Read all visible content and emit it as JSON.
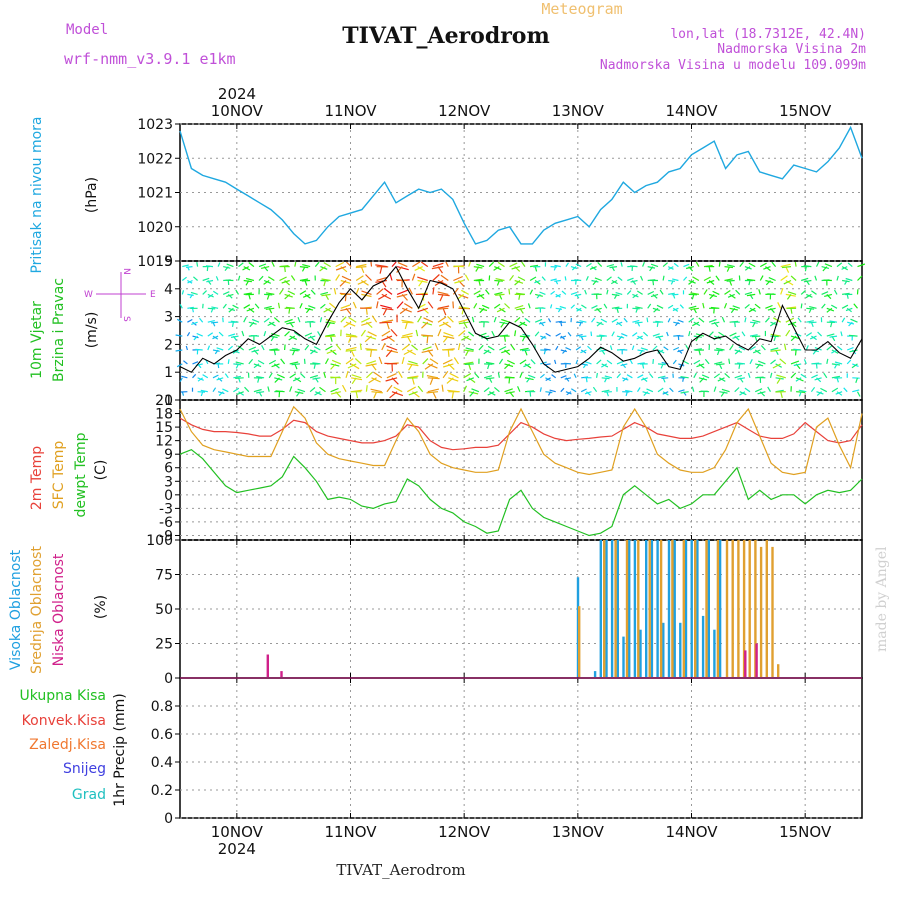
{
  "header": {
    "meteogram_label": "Meteogram",
    "station_title": "TIVAT_Aerodrom",
    "model_label": "Model",
    "model_name": "wrf-nmm_v3.9.1  e1km",
    "lonlat": "lon,lat (18.7312E, 42.4N)",
    "elevation": "Nadmorska Visina 2m",
    "model_elevation": "Nadmorska Visina u modelu 109.099m",
    "year_top": "2024",
    "credit": "made by Angel",
    "footer_title": "TIVAT_Aerodrom"
  },
  "colors": {
    "pressure": "#1fa8e0",
    "temp2m": "#e8413a",
    "sfctemp": "#e0a020",
    "dewpt": "#22c022",
    "cloud_high": "#20a0e0",
    "cloud_mid": "#e0a030",
    "cloud_low": "#d0208a",
    "wind_scale_magenta": "#c040d0"
  },
  "chart_data": [
    {
      "type": "line",
      "panel": "pressure",
      "side_label": "Pritisak na nivou mora",
      "unit_label": "(hPa)",
      "ylim": [
        1019,
        1023
      ],
      "yticks": [
        "1023",
        "1022",
        "1021",
        "1020",
        "1019"
      ],
      "x_categories": [
        "10NOV",
        "11NOV",
        "12NOV",
        "13NOV",
        "14NOV",
        "15NOV"
      ],
      "x_days": [
        0,
        1,
        2,
        3,
        4,
        5
      ],
      "year_bottom": "2024",
      "x_range_days": [
        -0.5,
        5.5
      ],
      "series": [
        {
          "x": [
            -0.5,
            -0.4,
            -0.3,
            -0.2,
            -0.1,
            0.0,
            0.1,
            0.2,
            0.3,
            0.4,
            0.5,
            0.6,
            0.7,
            0.8,
            0.9,
            1.0,
            1.1,
            1.2,
            1.3,
            1.4,
            1.5,
            1.6,
            1.7,
            1.8,
            1.9,
            2.0,
            2.1,
            2.2,
            2.3,
            2.4,
            2.5,
            2.6,
            2.7,
            2.8,
            2.9,
            3.0,
            3.1,
            3.2,
            3.3,
            3.4,
            3.5,
            3.6,
            3.7,
            3.8,
            3.9,
            4.0,
            4.1,
            4.2,
            4.3,
            4.4,
            4.5,
            4.6,
            4.7,
            4.8,
            4.9,
            5.0,
            5.1,
            5.2,
            5.3,
            5.4,
            5.5
          ],
          "values": [
            1022.8,
            1021.7,
            1021.5,
            1021.4,
            1021.3,
            1021.1,
            1020.9,
            1020.7,
            1020.5,
            1020.2,
            1019.8,
            1019.5,
            1019.6,
            1020.0,
            1020.3,
            1020.4,
            1020.5,
            1020.9,
            1021.3,
            1020.7,
            1020.9,
            1021.1,
            1021.0,
            1021.1,
            1020.8,
            1020.1,
            1019.5,
            1019.6,
            1019.9,
            1020.0,
            1019.5,
            1019.5,
            1019.9,
            1020.1,
            1020.2,
            1020.3,
            1020.0,
            1020.5,
            1020.8,
            1021.3,
            1021.0,
            1021.2,
            1021.3,
            1021.6,
            1021.7,
            1022.1,
            1022.3,
            1022.5,
            1021.7,
            1022.1,
            1022.2,
            1021.6,
            1021.5,
            1021.4,
            1021.8,
            1021.7,
            1021.6,
            1021.9,
            1022.3,
            1022.9,
            1022.0
          ]
        }
      ]
    },
    {
      "type": "line",
      "panel": "wind",
      "side_label_1": "10m Vjetar",
      "side_label_2": "Brzina i Pravac",
      "unit_label": "(m/s)",
      "compass_letters": [
        "N",
        "W",
        "E",
        "S"
      ],
      "ylim": [
        0,
        5
      ],
      "yticks": [
        "5",
        "4",
        "3",
        "2",
        "1",
        "0"
      ],
      "series": [
        {
          "name": "speed",
          "x": [
            -0.5,
            -0.4,
            -0.3,
            -0.2,
            -0.1,
            0.0,
            0.1,
            0.2,
            0.3,
            0.4,
            0.5,
            0.6,
            0.7,
            0.8,
            0.9,
            1.0,
            1.1,
            1.2,
            1.3,
            1.4,
            1.5,
            1.6,
            1.7,
            1.8,
            1.9,
            2.0,
            2.1,
            2.2,
            2.3,
            2.4,
            2.5,
            2.6,
            2.7,
            2.8,
            2.9,
            3.0,
            3.1,
            3.2,
            3.3,
            3.4,
            3.5,
            3.6,
            3.7,
            3.8,
            3.9,
            4.0,
            4.1,
            4.2,
            4.3,
            4.4,
            4.5,
            4.6,
            4.7,
            4.8,
            4.9,
            5.0,
            5.1,
            5.2,
            5.3,
            5.4,
            5.5
          ],
          "values": [
            1.2,
            1.0,
            1.5,
            1.3,
            1.6,
            1.8,
            2.2,
            2.0,
            2.3,
            2.6,
            2.5,
            2.2,
            2.0,
            2.8,
            3.5,
            4.0,
            3.6,
            4.1,
            4.3,
            4.8,
            4.0,
            3.3,
            4.3,
            4.2,
            4.0,
            3.2,
            2.4,
            2.2,
            2.3,
            2.8,
            2.6,
            2.0,
            1.3,
            1.0,
            1.1,
            1.2,
            1.5,
            1.9,
            1.7,
            1.4,
            1.5,
            1.7,
            1.8,
            1.2,
            1.1,
            2.1,
            2.4,
            2.2,
            2.3,
            2.0,
            1.8,
            2.2,
            2.1,
            3.4,
            2.6,
            1.8,
            1.8,
            2.1,
            1.7,
            1.5,
            2.2
          ]
        }
      ]
    },
    {
      "type": "line",
      "panel": "temperature",
      "side_label_1": "2m Temp",
      "side_label_2": "SFC Temp",
      "side_label_3": "dewpt Temp",
      "unit_label": "(C)",
      "ylim": [
        -10,
        21
      ],
      "yticks": [
        "21",
        "18",
        "15",
        "12",
        "9",
        "6",
        "3",
        "0",
        "-3",
        "-6",
        "-9"
      ],
      "ytick_values": [
        21,
        18,
        15,
        12,
        9,
        6,
        3,
        0,
        -3,
        -6,
        -9
      ],
      "series": [
        {
          "name": "2m Temp",
          "x": [
            -0.5,
            -0.4,
            -0.3,
            -0.2,
            -0.1,
            0.0,
            0.1,
            0.2,
            0.3,
            0.4,
            0.5,
            0.6,
            0.7,
            0.8,
            0.9,
            1.0,
            1.1,
            1.2,
            1.3,
            1.4,
            1.5,
            1.6,
            1.7,
            1.8,
            1.9,
            2.0,
            2.1,
            2.2,
            2.3,
            2.4,
            2.5,
            2.6,
            2.7,
            2.8,
            2.9,
            3.0,
            3.1,
            3.2,
            3.3,
            3.4,
            3.5,
            3.6,
            3.7,
            3.8,
            3.9,
            4.0,
            4.1,
            4.2,
            4.3,
            4.4,
            4.5,
            4.6,
            4.7,
            4.8,
            4.9,
            5.0,
            5.1,
            5.2,
            5.3,
            5.4,
            5.5
          ],
          "values": [
            17,
            15.5,
            14.5,
            14,
            14,
            13.8,
            13.5,
            13,
            13,
            14.5,
            16.5,
            16,
            14,
            13,
            12.5,
            12,
            11.5,
            11.5,
            12,
            13,
            15.5,
            15,
            12,
            10.5,
            10,
            10.2,
            10.5,
            10.5,
            11,
            13.5,
            16,
            15,
            13.5,
            12.5,
            12,
            12.3,
            12.5,
            12.8,
            13,
            14.5,
            16,
            15,
            13.5,
            13,
            12.5,
            12.5,
            13,
            14,
            15,
            16,
            14.5,
            13,
            12.5,
            12.5,
            13.5,
            16,
            14,
            12,
            11.5,
            12,
            15.5
          ]
        },
        {
          "name": "SFC Temp",
          "x": [
            -0.5,
            -0.4,
            -0.3,
            -0.2,
            -0.1,
            0.0,
            0.1,
            0.2,
            0.3,
            0.4,
            0.5,
            0.6,
            0.7,
            0.8,
            0.9,
            1.0,
            1.1,
            1.2,
            1.3,
            1.4,
            1.5,
            1.6,
            1.7,
            1.8,
            1.9,
            2.0,
            2.1,
            2.2,
            2.3,
            2.4,
            2.5,
            2.6,
            2.7,
            2.8,
            2.9,
            3.0,
            3.1,
            3.2,
            3.3,
            3.4,
            3.5,
            3.6,
            3.7,
            3.8,
            3.9,
            4.0,
            4.1,
            4.2,
            4.3,
            4.4,
            4.5,
            4.6,
            4.7,
            4.8,
            4.9,
            5.0,
            5.1,
            5.2,
            5.3,
            5.4,
            5.5
          ],
          "values": [
            19,
            14,
            11,
            10,
            9.5,
            9,
            8.5,
            8.5,
            8.5,
            14,
            19.5,
            17,
            11.5,
            9,
            8,
            7.5,
            7,
            6.5,
            6.5,
            12,
            17,
            14,
            9,
            7,
            6,
            5.5,
            5,
            5,
            5.5,
            14,
            19,
            14,
            9,
            7,
            6,
            5,
            4.5,
            5,
            5.5,
            15,
            19,
            15,
            9,
            7,
            5.5,
            5,
            5,
            6,
            10,
            16,
            19,
            13,
            7,
            5,
            4.5,
            5,
            15,
            17,
            11,
            6,
            18
          ]
        },
        {
          "name": "dewpt Temp",
          "x": [
            -0.5,
            -0.4,
            -0.3,
            -0.2,
            -0.1,
            0.0,
            0.1,
            0.2,
            0.3,
            0.4,
            0.5,
            0.6,
            0.7,
            0.8,
            0.9,
            1.0,
            1.1,
            1.2,
            1.3,
            1.4,
            1.5,
            1.6,
            1.7,
            1.8,
            1.9,
            2.0,
            2.1,
            2.2,
            2.3,
            2.4,
            2.5,
            2.6,
            2.7,
            2.8,
            2.9,
            3.0,
            3.1,
            3.2,
            3.3,
            3.4,
            3.5,
            3.6,
            3.7,
            3.8,
            3.9,
            4.0,
            4.1,
            4.2,
            4.3,
            4.4,
            4.5,
            4.6,
            4.7,
            4.8,
            4.9,
            5.0,
            5.1,
            5.2,
            5.3,
            5.4,
            5.5
          ],
          "values": [
            9,
            10,
            8,
            5,
            2,
            0.5,
            1,
            1.5,
            2,
            4,
            8.5,
            6,
            3,
            -1,
            -0.5,
            -1,
            -2.5,
            -3,
            -2,
            -1.5,
            3.5,
            2,
            -1,
            -3,
            -4,
            -6,
            -7,
            -8.5,
            -8,
            -1,
            1,
            -3,
            -5,
            -6,
            -7,
            -8,
            -9,
            -8.5,
            -7,
            0,
            2,
            0,
            -2,
            -1,
            -3,
            -2,
            0,
            0,
            3,
            6,
            -1,
            1,
            -1,
            0,
            0,
            -2,
            0,
            1,
            0.5,
            1,
            3.5
          ]
        }
      ]
    },
    {
      "type": "bar",
      "panel": "clouds",
      "side_label_1": "Visoka Oblacnost",
      "side_label_2": "Srednja Oblacnost",
      "side_label_3": "Niska  Oblacnost",
      "unit_label": "(%)",
      "ylim": [
        0,
        100
      ],
      "yticks": [
        "100",
        "75",
        "50",
        "25",
        "0"
      ],
      "ytick_values": [
        100,
        75,
        50,
        25,
        0
      ],
      "series": [
        {
          "name": "Visoka Oblacnost",
          "x": [
            3.0,
            3.15,
            3.2,
            3.25,
            3.3,
            3.35,
            3.4,
            3.45,
            3.5,
            3.55,
            3.6,
            3.65,
            3.7,
            3.75,
            3.8,
            3.85,
            3.9,
            3.95,
            4.0,
            4.05,
            4.1,
            4.15,
            4.2,
            4.25
          ],
          "values": [
            73,
            5,
            100,
            100,
            100,
            100,
            30,
            100,
            100,
            35,
            100,
            100,
            100,
            40,
            100,
            100,
            40,
            100,
            100,
            100,
            45,
            100,
            35,
            100
          ]
        },
        {
          "name": "Srednja Oblacnost",
          "x": [
            3.0,
            3.22,
            3.32,
            3.42,
            3.52,
            3.62,
            3.72,
            3.82,
            3.92,
            4.02,
            4.12,
            4.22,
            4.3,
            4.35,
            4.4,
            4.45,
            4.5,
            4.55,
            4.6,
            4.65,
            4.7,
            4.75
          ],
          "values": [
            52,
            100,
            100,
            100,
            100,
            100,
            100,
            100,
            100,
            100,
            100,
            100,
            100,
            100,
            100,
            100,
            100,
            100,
            95,
            100,
            95,
            10
          ]
        },
        {
          "name": "Niska  Oblacnost",
          "x": [
            0.25,
            0.37,
            4.45,
            4.55
          ],
          "values": [
            17,
            5,
            20,
            25
          ]
        }
      ]
    },
    {
      "type": "bar",
      "panel": "precip",
      "side_label_1": "Ukupna Kisa",
      "side_label_2": "Konvek.Kisa",
      "side_label_3": "Zaledj.Kisa",
      "side_label_4": "Snijeg",
      "side_label_5": "Grad",
      "unit_label": "1hr Precip (mm)",
      "ylim": [
        0,
        1
      ],
      "yticks": [
        "0.8",
        "0.6",
        "0.4",
        "0.2",
        "0"
      ],
      "ytick_values": [
        0.8,
        0.6,
        0.4,
        0.2,
        0
      ],
      "series": []
    }
  ]
}
